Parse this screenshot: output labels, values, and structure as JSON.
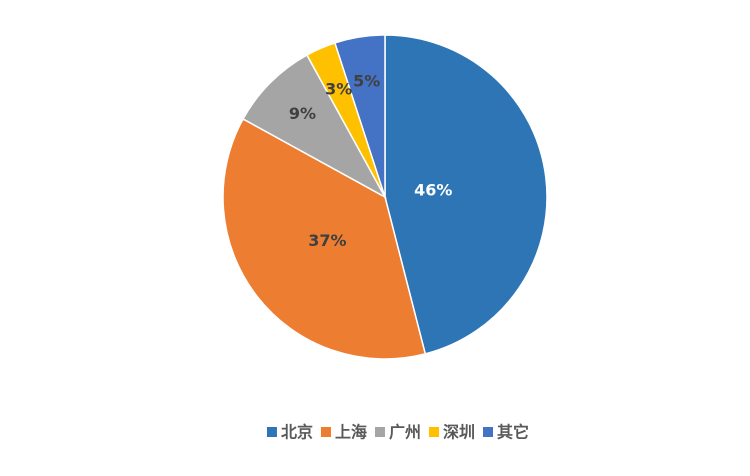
{
  "chart_data": {
    "type": "pie",
    "categories": [
      "北京",
      "上海",
      "广州",
      "深圳",
      "其它"
    ],
    "values": [
      46,
      37,
      9,
      3,
      5
    ],
    "value_labels": [
      "46%",
      "37%",
      "9%",
      "3%",
      "5%"
    ],
    "colors": [
      "#2e75b6",
      "#ed7d31",
      "#a5a5a5",
      "#ffc000",
      "#4472c4"
    ],
    "legend": "bottom"
  }
}
